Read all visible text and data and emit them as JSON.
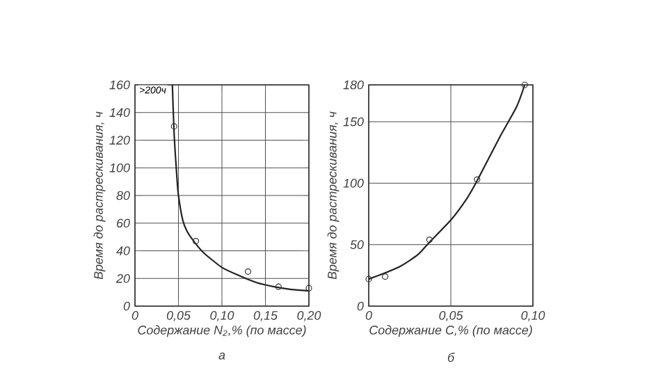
{
  "chart_data": [
    {
      "type": "line",
      "ylabel": "Время до растрескивания, ч",
      "xlabel": "Содержание N$_{2}$,% (по массе)",
      "annotations": [
        {
          "text": ">200ч",
          "x": 0.045,
          "y": 160
        },
        "а"
      ],
      "xlim": [
        0,
        0.2
      ],
      "ylim": [
        0,
        160
      ],
      "xticks": [
        {
          "value": 0,
          "label": "0"
        },
        {
          "value": 0.05,
          "label": "0,05"
        },
        {
          "value": 0.1,
          "label": "0,10"
        },
        {
          "value": 0.15,
          "label": "0,15"
        },
        {
          "value": 0.2,
          "label": "0,20"
        }
      ],
      "yticks": [
        0,
        20,
        40,
        60,
        80,
        100,
        120,
        140,
        160
      ],
      "grid": true,
      "series": [
        {
          "type": "scatter",
          "marker": "circle",
          "color": "#333333",
          "x": [
            0.045,
            0.07,
            0.13,
            0.165,
            0.2
          ],
          "values": [
            130,
            47,
            25,
            14,
            13
          ]
        },
        {
          "marker": "none",
          "color": "#222222",
          "x": [
            0.043,
            0.045,
            0.048,
            0.05,
            0.055,
            0.06,
            0.07,
            0.08,
            0.1,
            0.12,
            0.14,
            0.16,
            0.18,
            0.2
          ],
          "values": [
            160,
            125,
            95,
            80,
            62,
            54,
            45,
            38,
            28,
            22,
            17,
            14,
            12,
            11
          ]
        }
      ]
    },
    {
      "type": "line",
      "ylabel": "Время до растрескивания, ч",
      "xlabel": "Содержание C,% (по массе)",
      "annotations": [
        "б"
      ],
      "xlim": [
        0,
        0.1
      ],
      "ylim": [
        0,
        180
      ],
      "xticks": [
        {
          "value": 0,
          "label": "0"
        },
        {
          "value": 0.05,
          "label": "0,05"
        },
        {
          "value": 0.1,
          "label": "0,10"
        }
      ],
      "yticks": [
        0,
        50,
        100,
        150,
        180
      ],
      "grid": true,
      "series": [
        {
          "type": "scatter",
          "marker": "circle",
          "color": "#333333",
          "x": [
            0,
            0.01,
            0.037,
            0.066,
            0.095
          ],
          "values": [
            22,
            24,
            54,
            103,
            180
          ]
        },
        {
          "marker": "none",
          "color": "#222222",
          "x": [
            0,
            0.01,
            0.02,
            0.03,
            0.037,
            0.05,
            0.06,
            0.066,
            0.08,
            0.09,
            0.095
          ],
          "values": [
            22,
            27,
            33,
            42,
            52,
            70,
            88,
            102,
            138,
            162,
            180
          ]
        }
      ]
    }
  ]
}
